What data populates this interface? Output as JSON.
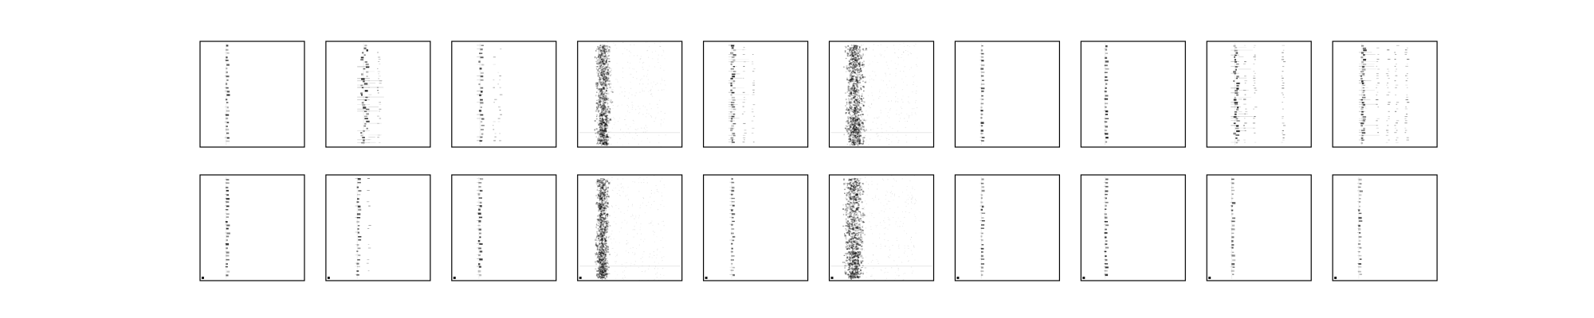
{
  "figure": {
    "background": "#ffffff",
    "frame_color": "#000000",
    "mark_color": "#000000"
  },
  "chart_data": [
    {
      "type": "heatmap",
      "row": 1,
      "col": 1,
      "pattern": "sparse-column",
      "column_position": 0.25,
      "column_spread": 0.015,
      "intensity": 0.85,
      "side_columns": []
    },
    {
      "type": "heatmap",
      "row": 1,
      "col": 2,
      "pattern": "multi-column",
      "column_position": 0.36,
      "column_spread": 0.06,
      "intensity": 0.9,
      "side_columns": [
        0.5
      ]
    },
    {
      "type": "heatmap",
      "row": 1,
      "col": 3,
      "pattern": "sparse-column",
      "column_position": 0.27,
      "column_spread": 0.03,
      "intensity": 0.8,
      "side_columns": [
        0.4,
        0.45
      ]
    },
    {
      "type": "heatmap",
      "row": 1,
      "col": 4,
      "pattern": "dense-band",
      "column_position": 0.24,
      "column_spread": 0.045,
      "intensity": 0.6,
      "side_columns": []
    },
    {
      "type": "heatmap",
      "row": 1,
      "col": 5,
      "pattern": "multi-column",
      "column_position": 0.27,
      "column_spread": 0.03,
      "intensity": 0.85,
      "side_columns": [
        0.38,
        0.47
      ]
    },
    {
      "type": "heatmap",
      "row": 1,
      "col": 6,
      "pattern": "dense-band",
      "column_position": 0.24,
      "column_spread": 0.06,
      "intensity": 0.65,
      "side_columns": []
    },
    {
      "type": "heatmap",
      "row": 1,
      "col": 7,
      "pattern": "sparse-column",
      "column_position": 0.25,
      "column_spread": 0.012,
      "intensity": 0.8,
      "side_columns": []
    },
    {
      "type": "heatmap",
      "row": 1,
      "col": 8,
      "pattern": "sparse-column",
      "column_position": 0.23,
      "column_spread": 0.012,
      "intensity": 0.85,
      "side_columns": []
    },
    {
      "type": "heatmap",
      "row": 1,
      "col": 9,
      "pattern": "multi-column",
      "column_position": 0.27,
      "column_spread": 0.04,
      "intensity": 0.9,
      "side_columns": [
        0.36,
        0.45,
        0.72
      ]
    },
    {
      "type": "heatmap",
      "row": 1,
      "col": 10,
      "pattern": "multi-column",
      "column_position": 0.28,
      "column_spread": 0.03,
      "intensity": 0.8,
      "side_columns": [
        0.42,
        0.52,
        0.6,
        0.7
      ]
    },
    {
      "type": "heatmap",
      "row": 2,
      "col": 1,
      "pattern": "sparse-column",
      "column_position": 0.25,
      "column_spread": 0.012,
      "intensity": 0.85,
      "side_columns": []
    },
    {
      "type": "heatmap",
      "row": 2,
      "col": 2,
      "pattern": "sparse-column",
      "column_position": 0.3,
      "column_spread": 0.02,
      "intensity": 0.75,
      "side_columns": [
        0.4
      ]
    },
    {
      "type": "heatmap",
      "row": 2,
      "col": 3,
      "pattern": "sparse-column",
      "column_position": 0.26,
      "column_spread": 0.02,
      "intensity": 0.8,
      "side_columns": []
    },
    {
      "type": "heatmap",
      "row": 2,
      "col": 4,
      "pattern": "dense-band",
      "column_position": 0.23,
      "column_spread": 0.04,
      "intensity": 0.6,
      "side_columns": []
    },
    {
      "type": "heatmap",
      "row": 2,
      "col": 5,
      "pattern": "sparse-column",
      "column_position": 0.27,
      "column_spread": 0.02,
      "intensity": 0.8,
      "side_columns": []
    },
    {
      "type": "heatmap",
      "row": 2,
      "col": 6,
      "pattern": "dense-band",
      "column_position": 0.23,
      "column_spread": 0.06,
      "intensity": 0.65,
      "side_columns": []
    },
    {
      "type": "heatmap",
      "row": 2,
      "col": 7,
      "pattern": "sparse-column",
      "column_position": 0.25,
      "column_spread": 0.012,
      "intensity": 0.8,
      "side_columns": []
    },
    {
      "type": "heatmap",
      "row": 2,
      "col": 8,
      "pattern": "sparse-column",
      "column_position": 0.23,
      "column_spread": 0.012,
      "intensity": 0.85,
      "side_columns": []
    },
    {
      "type": "heatmap",
      "row": 2,
      "col": 9,
      "pattern": "sparse-column",
      "column_position": 0.24,
      "column_spread": 0.015,
      "intensity": 0.7,
      "side_columns": []
    },
    {
      "type": "heatmap",
      "row": 2,
      "col": 10,
      "pattern": "sparse-column",
      "column_position": 0.25,
      "column_spread": 0.015,
      "intensity": 0.65,
      "side_columns": []
    }
  ]
}
